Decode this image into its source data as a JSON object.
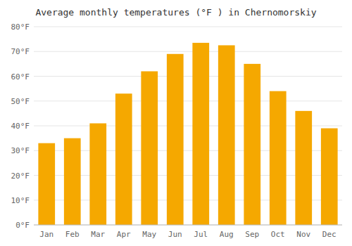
{
  "chart_data": {
    "type": "bar",
    "title": "Average monthly temperatures (°F ) in Chernomorskiy",
    "categories": [
      "Jan",
      "Feb",
      "Mar",
      "Apr",
      "May",
      "Jun",
      "Jul",
      "Aug",
      "Sep",
      "Oct",
      "Nov",
      "Dec"
    ],
    "values": [
      33,
      35,
      41,
      53,
      62,
      69,
      73.5,
      72.5,
      65,
      54,
      46,
      39
    ],
    "color": "#F5A800",
    "ylim": [
      0,
      80
    ],
    "yticks": [
      {
        "value": 0,
        "label": "0°F"
      },
      {
        "value": 10,
        "label": "10°F"
      },
      {
        "value": 20,
        "label": "20°F"
      },
      {
        "value": 30,
        "label": "30°F"
      },
      {
        "value": 40,
        "label": "40°F"
      },
      {
        "value": 50,
        "label": "50°F"
      },
      {
        "value": 60,
        "label": "60°F"
      },
      {
        "value": 70,
        "label": "70°F"
      },
      {
        "value": 80,
        "label": "80°F"
      }
    ],
    "grid": true
  }
}
